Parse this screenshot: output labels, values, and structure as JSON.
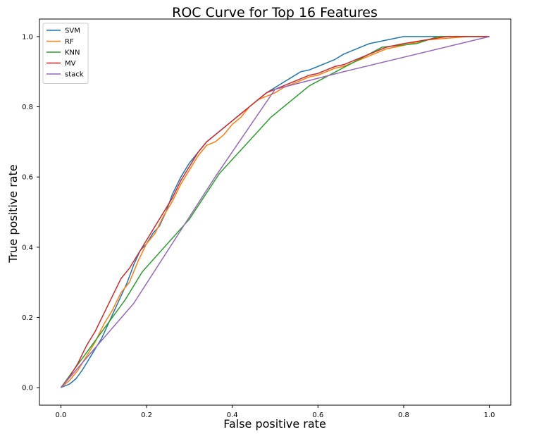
{
  "chart_data": {
    "type": "line",
    "title": "ROC Curve for Top 16 Features",
    "xlabel": "False positive rate",
    "ylabel": "True positive rate",
    "xlim": [
      -0.05,
      1.05
    ],
    "ylim": [
      -0.05,
      1.05
    ],
    "xticks": [
      "0.0",
      "0.2",
      "0.4",
      "0.6",
      "0.8",
      "1.0"
    ],
    "yticks": [
      "0.0",
      "0.2",
      "0.4",
      "0.6",
      "0.8",
      "1.0"
    ],
    "grid": false,
    "legend_position": "upper-left",
    "series": [
      {
        "name": "SVM",
        "color": "#1f77b4",
        "x": [
          0.0,
          0.02,
          0.035,
          0.05,
          0.065,
          0.08,
          0.095,
          0.11,
          0.125,
          0.14,
          0.155,
          0.17,
          0.185,
          0.2,
          0.215,
          0.23,
          0.245,
          0.26,
          0.28,
          0.3,
          0.32,
          0.34,
          0.36,
          0.38,
          0.4,
          0.42,
          0.44,
          0.46,
          0.48,
          0.5,
          0.52,
          0.54,
          0.56,
          0.58,
          0.6,
          0.62,
          0.64,
          0.66,
          0.68,
          0.7,
          0.72,
          0.74,
          0.76,
          0.78,
          0.8,
          0.82,
          0.86,
          0.9,
          0.95,
          1.0
        ],
        "y": [
          0.0,
          0.01,
          0.025,
          0.05,
          0.08,
          0.11,
          0.14,
          0.18,
          0.22,
          0.26,
          0.3,
          0.35,
          0.39,
          0.41,
          0.44,
          0.46,
          0.5,
          0.55,
          0.6,
          0.64,
          0.67,
          0.7,
          0.72,
          0.74,
          0.76,
          0.78,
          0.8,
          0.82,
          0.84,
          0.855,
          0.87,
          0.885,
          0.9,
          0.905,
          0.915,
          0.925,
          0.935,
          0.95,
          0.96,
          0.97,
          0.98,
          0.985,
          0.99,
          0.995,
          1.0,
          1.0,
          1.0,
          1.0,
          1.0,
          1.0
        ]
      },
      {
        "name": "RF",
        "color": "#ff7f0e",
        "x": [
          0.0,
          0.02,
          0.04,
          0.06,
          0.08,
          0.1,
          0.12,
          0.14,
          0.16,
          0.18,
          0.2,
          0.22,
          0.24,
          0.26,
          0.28,
          0.3,
          0.32,
          0.34,
          0.36,
          0.38,
          0.4,
          0.42,
          0.44,
          0.46,
          0.48,
          0.5,
          0.52,
          0.54,
          0.56,
          0.58,
          0.6,
          0.62,
          0.64,
          0.66,
          0.68,
          0.7,
          0.72,
          0.74,
          0.76,
          0.78,
          0.8,
          0.85,
          0.9,
          0.95,
          1.0
        ],
        "y": [
          0.0,
          0.02,
          0.05,
          0.09,
          0.13,
          0.18,
          0.22,
          0.27,
          0.3,
          0.36,
          0.41,
          0.44,
          0.49,
          0.53,
          0.58,
          0.62,
          0.66,
          0.69,
          0.7,
          0.72,
          0.75,
          0.77,
          0.8,
          0.82,
          0.83,
          0.84,
          0.855,
          0.865,
          0.875,
          0.885,
          0.89,
          0.9,
          0.91,
          0.915,
          0.925,
          0.935,
          0.945,
          0.955,
          0.965,
          0.97,
          0.975,
          0.99,
          0.995,
          1.0,
          1.0
        ]
      },
      {
        "name": "KNN",
        "color": "#2ca02c",
        "x": [
          0.0,
          0.15,
          0.19,
          0.3,
          0.37,
          0.49,
          0.58,
          0.75,
          0.83,
          0.88,
          1.0
        ],
        "y": [
          0.0,
          0.25,
          0.33,
          0.48,
          0.61,
          0.77,
          0.86,
          0.97,
          0.98,
          1.0,
          1.0
        ]
      },
      {
        "name": "MV",
        "color": "#d62728",
        "x": [
          0.0,
          0.02,
          0.04,
          0.06,
          0.08,
          0.1,
          0.12,
          0.14,
          0.16,
          0.18,
          0.2,
          0.22,
          0.24,
          0.26,
          0.28,
          0.3,
          0.32,
          0.34,
          0.36,
          0.38,
          0.4,
          0.42,
          0.44,
          0.46,
          0.48,
          0.5,
          0.52,
          0.54,
          0.56,
          0.58,
          0.6,
          0.62,
          0.64,
          0.66,
          0.68,
          0.7,
          0.72,
          0.74,
          0.76,
          0.78,
          0.8,
          0.85,
          0.9,
          0.95,
          1.0
        ],
        "y": [
          0.0,
          0.03,
          0.07,
          0.12,
          0.16,
          0.21,
          0.26,
          0.31,
          0.34,
          0.38,
          0.42,
          0.46,
          0.5,
          0.54,
          0.59,
          0.63,
          0.67,
          0.7,
          0.72,
          0.74,
          0.76,
          0.78,
          0.8,
          0.82,
          0.84,
          0.85,
          0.86,
          0.87,
          0.88,
          0.89,
          0.895,
          0.905,
          0.915,
          0.92,
          0.93,
          0.94,
          0.95,
          0.96,
          0.97,
          0.975,
          0.98,
          0.99,
          1.0,
          1.0,
          1.0
        ]
      },
      {
        "name": "stack",
        "color": "#9467bd",
        "x": [
          0.0,
          0.17,
          0.36,
          0.5,
          0.66,
          1.0
        ],
        "y": [
          0.0,
          0.24,
          0.6,
          0.85,
          0.9,
          1.0
        ]
      }
    ]
  }
}
